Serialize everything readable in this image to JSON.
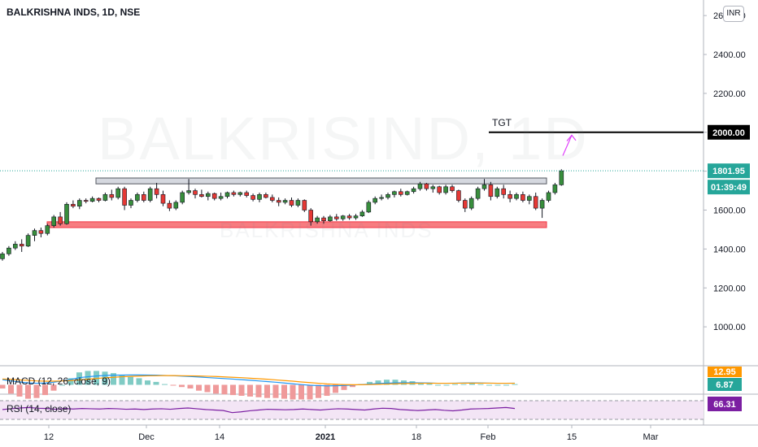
{
  "header": {
    "title": "BALKRISHNA INDS, 1D, NSE",
    "currency": "INR",
    "watermark": "BALKRISIND, 1D",
    "watermark_sub": "BALKRISHNA INDS"
  },
  "annotation": {
    "target_label": "TGT"
  },
  "colors": {
    "up": "#26a69a",
    "down": "#ef5350",
    "macd": "#2196f3",
    "signal": "#ff9800",
    "rsi": "#9c27b0"
  },
  "chart_data": {
    "type": "candlestick",
    "symbol": "BALKRISHNA INDS",
    "interval": "1D",
    "exchange": "NSE",
    "y_ticks": [
      "2600.00",
      "2400.00",
      "2200.00",
      "2000.00",
      "1800.00",
      "1600.00",
      "1400.00",
      "1200.00",
      "1000.00"
    ],
    "x_ticks": [
      "12",
      "Dec",
      "14",
      "2021",
      "18",
      "Feb",
      "15",
      "Mar"
    ],
    "ylim": [
      800,
      2680
    ],
    "last_price": "1801.95",
    "countdown": "01:39:49",
    "target_price": "2000.00",
    "resistance_zone": [
      1735,
      1765
    ],
    "support_zone": [
      1510,
      1540
    ],
    "candles": [
      [
        1350,
        1385,
        1340,
        1375
      ],
      [
        1375,
        1415,
        1365,
        1405
      ],
      [
        1405,
        1440,
        1395,
        1425
      ],
      [
        1425,
        1450,
        1385,
        1415
      ],
      [
        1415,
        1480,
        1410,
        1470
      ],
      [
        1470,
        1505,
        1440,
        1495
      ],
      [
        1495,
        1510,
        1460,
        1480
      ],
      [
        1480,
        1530,
        1470,
        1520
      ],
      [
        1520,
        1575,
        1510,
        1565
      ],
      [
        1565,
        1590,
        1520,
        1530
      ],
      [
        1530,
        1640,
        1525,
        1630
      ],
      [
        1630,
        1650,
        1610,
        1620
      ],
      [
        1620,
        1660,
        1605,
        1650
      ],
      [
        1650,
        1660,
        1635,
        1645
      ],
      [
        1645,
        1670,
        1640,
        1660
      ],
      [
        1660,
        1665,
        1640,
        1650
      ],
      [
        1650,
        1690,
        1645,
        1680
      ],
      [
        1680,
        1705,
        1650,
        1665
      ],
      [
        1665,
        1720,
        1655,
        1710
      ],
      [
        1710,
        1720,
        1600,
        1625
      ],
      [
        1625,
        1660,
        1610,
        1650
      ],
      [
        1650,
        1690,
        1640,
        1680
      ],
      [
        1680,
        1695,
        1640,
        1650
      ],
      [
        1650,
        1720,
        1640,
        1710
      ],
      [
        1710,
        1740,
        1660,
        1680
      ],
      [
        1680,
        1700,
        1620,
        1635
      ],
      [
        1635,
        1650,
        1595,
        1610
      ],
      [
        1610,
        1650,
        1600,
        1640
      ],
      [
        1640,
        1700,
        1630,
        1690
      ],
      [
        1690,
        1760,
        1680,
        1700
      ],
      [
        1700,
        1710,
        1660,
        1680
      ],
      [
        1680,
        1705,
        1665,
        1670
      ],
      [
        1670,
        1695,
        1650,
        1685
      ],
      [
        1685,
        1690,
        1650,
        1660
      ],
      [
        1660,
        1690,
        1650,
        1670
      ],
      [
        1670,
        1695,
        1660,
        1690
      ],
      [
        1690,
        1700,
        1670,
        1680
      ],
      [
        1680,
        1695,
        1670,
        1690
      ],
      [
        1690,
        1700,
        1665,
        1675
      ],
      [
        1675,
        1685,
        1645,
        1655
      ],
      [
        1655,
        1690,
        1640,
        1680
      ],
      [
        1680,
        1690,
        1660,
        1665
      ],
      [
        1665,
        1680,
        1640,
        1650
      ],
      [
        1650,
        1665,
        1620,
        1640
      ],
      [
        1640,
        1660,
        1630,
        1650
      ],
      [
        1650,
        1665,
        1615,
        1625
      ],
      [
        1625,
        1660,
        1615,
        1650
      ],
      [
        1650,
        1655,
        1590,
        1600
      ],
      [
        1600,
        1610,
        1520,
        1540
      ],
      [
        1540,
        1570,
        1530,
        1560
      ],
      [
        1560,
        1570,
        1530,
        1545
      ],
      [
        1545,
        1575,
        1540,
        1565
      ],
      [
        1565,
        1580,
        1545,
        1555
      ],
      [
        1555,
        1575,
        1545,
        1570
      ],
      [
        1570,
        1580,
        1550,
        1560
      ],
      [
        1560,
        1580,
        1550,
        1570
      ],
      [
        1570,
        1600,
        1565,
        1590
      ],
      [
        1590,
        1650,
        1585,
        1640
      ],
      [
        1640,
        1670,
        1630,
        1660
      ],
      [
        1660,
        1680,
        1650,
        1665
      ],
      [
        1665,
        1690,
        1655,
        1680
      ],
      [
        1680,
        1700,
        1665,
        1695
      ],
      [
        1695,
        1710,
        1670,
        1680
      ],
      [
        1680,
        1700,
        1675,
        1695
      ],
      [
        1695,
        1720,
        1685,
        1710
      ],
      [
        1710,
        1745,
        1700,
        1735
      ],
      [
        1735,
        1740,
        1700,
        1710
      ],
      [
        1710,
        1730,
        1690,
        1720
      ],
      [
        1720,
        1725,
        1680,
        1690
      ],
      [
        1690,
        1730,
        1680,
        1720
      ],
      [
        1720,
        1730,
        1690,
        1700
      ],
      [
        1700,
        1705,
        1640,
        1650
      ],
      [
        1650,
        1660,
        1590,
        1610
      ],
      [
        1610,
        1670,
        1600,
        1660
      ],
      [
        1660,
        1720,
        1650,
        1710
      ],
      [
        1710,
        1760,
        1700,
        1730
      ],
      [
        1730,
        1745,
        1650,
        1670
      ],
      [
        1670,
        1720,
        1660,
        1710
      ],
      [
        1710,
        1730,
        1660,
        1680
      ],
      [
        1680,
        1700,
        1640,
        1660
      ],
      [
        1660,
        1690,
        1650,
        1680
      ],
      [
        1680,
        1695,
        1640,
        1650
      ],
      [
        1650,
        1680,
        1630,
        1670
      ],
      [
        1670,
        1690,
        1600,
        1610
      ],
      [
        1610,
        1660,
        1560,
        1650
      ],
      [
        1650,
        1700,
        1640,
        1690
      ],
      [
        1690,
        1740,
        1680,
        1730
      ],
      [
        1730,
        1810,
        1725,
        1802
      ]
    ],
    "macd": {
      "label": "MACD (12, 26, close, 9)",
      "values_shown": [
        "12.95",
        "6.87"
      ],
      "macd_line": [
        40,
        30,
        22,
        15,
        12,
        14,
        20,
        30,
        42,
        55,
        62,
        68,
        72,
        74,
        75,
        76,
        76,
        75,
        74,
        72,
        70,
        67,
        64,
        60,
        56,
        52,
        48,
        44,
        40,
        35,
        30,
        25,
        20,
        14,
        8,
        2,
        -3,
        -6,
        -8,
        -7,
        -5,
        -2,
        2,
        6,
        10,
        13,
        15,
        16,
        16,
        15,
        14,
        12,
        12,
        13,
        14,
        15,
        14,
        13,
        12,
        12,
        13
      ],
      "signal_line": [
        45,
        42,
        38,
        34,
        30,
        28,
        28,
        30,
        33,
        38,
        43,
        49,
        54,
        58,
        62,
        65,
        67,
        69,
        70,
        71,
        71,
        70,
        69,
        68,
        66,
        64,
        61,
        58,
        55,
        51,
        47,
        43,
        38,
        33,
        28,
        22,
        17,
        12,
        7,
        4,
        2,
        1,
        1,
        2,
        4,
        6,
        8,
        10,
        11,
        12,
        12,
        12,
        12,
        12,
        13,
        13,
        13,
        13,
        12,
        12,
        12
      ]
    },
    "rsi": {
      "label": "RSI (14, close)",
      "value": "66.31",
      "levels": [
        70,
        30
      ],
      "values": [
        62,
        65,
        68,
        70,
        67,
        66,
        63,
        66,
        64,
        66,
        65,
        64,
        66,
        65,
        63,
        64,
        62,
        64,
        65,
        63,
        66,
        68,
        65,
        62,
        60,
        58,
        50,
        53,
        57,
        60,
        63,
        62,
        61,
        62,
        64,
        62,
        60,
        63,
        65,
        64,
        62,
        60,
        64,
        67,
        66,
        62,
        60,
        58,
        60,
        62,
        59,
        57,
        60,
        64,
        65,
        66,
        68,
        70,
        66
      ]
    }
  }
}
